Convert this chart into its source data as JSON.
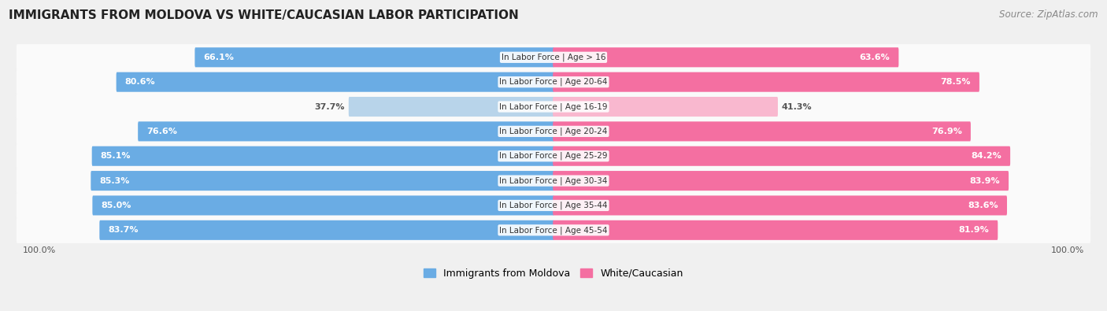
{
  "title": "IMMIGRANTS FROM MOLDOVA VS WHITE/CAUCASIAN LABOR PARTICIPATION",
  "source": "Source: ZipAtlas.com",
  "categories": [
    "In Labor Force | Age > 16",
    "In Labor Force | Age 20-64",
    "In Labor Force | Age 16-19",
    "In Labor Force | Age 20-24",
    "In Labor Force | Age 25-29",
    "In Labor Force | Age 30-34",
    "In Labor Force | Age 35-44",
    "In Labor Force | Age 45-54"
  ],
  "moldova_values": [
    66.1,
    80.6,
    37.7,
    76.6,
    85.1,
    85.3,
    85.0,
    83.7
  ],
  "white_values": [
    63.6,
    78.5,
    41.3,
    76.9,
    84.2,
    83.9,
    83.6,
    81.9
  ],
  "moldova_color_strong": "#6aace4",
  "moldova_color_light": "#b8d4ea",
  "white_color_strong": "#f46fa1",
  "white_color_light": "#f9b8cf",
  "background_color": "#f0f0f0",
  "row_bg_color": "#fafafa",
  "legend_moldova": "Immigrants from Moldova",
  "legend_white": "White/Caucasian",
  "threshold": 50
}
